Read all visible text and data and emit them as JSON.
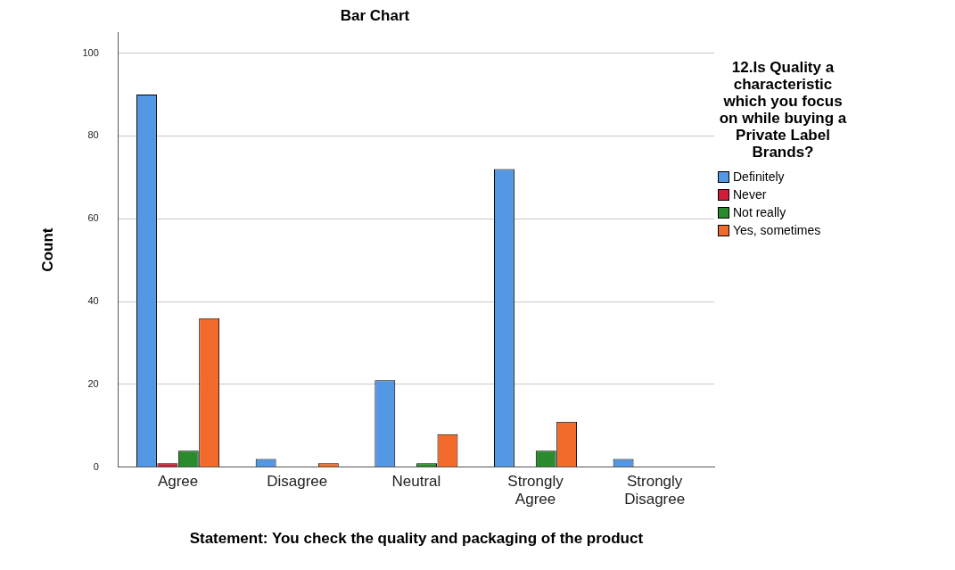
{
  "chart_data": {
    "type": "bar",
    "title": "Bar Chart",
    "xlabel": "Statement: You check the quality and packaging of the product",
    "ylabel": "Count",
    "legend_title": "12.Is Quality a characteristic which you focus on while buying a Private Label Brands?",
    "categories": [
      "Agree",
      "Disagree",
      "Neutral",
      "Strongly Agree",
      "Strongly Disagree"
    ],
    "series": [
      {
        "name": "Definitely",
        "color": "#5497e3",
        "values": [
          90,
          2,
          21,
          72,
          2
        ]
      },
      {
        "name": "Never",
        "color": "#d01c38",
        "values": [
          1,
          null,
          null,
          null,
          null
        ]
      },
      {
        "name": "Not really",
        "color": "#2b8a2b",
        "values": [
          4,
          null,
          1,
          4,
          null
        ]
      },
      {
        "name": "Yes, sometimes",
        "color": "#f36b2a",
        "values": [
          36,
          1,
          8,
          11,
          null
        ]
      }
    ],
    "ylim": [
      0,
      105
    ],
    "yticks": [
      0,
      20,
      40,
      60,
      80,
      100
    ],
    "grid": "y",
    "legend": "right"
  }
}
